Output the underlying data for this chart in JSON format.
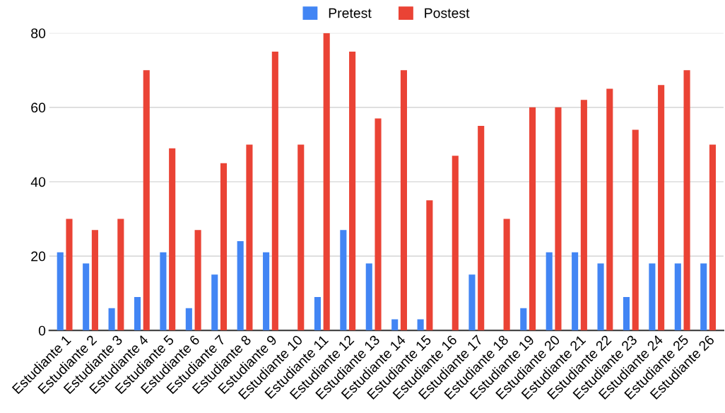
{
  "chart_data": {
    "type": "bar",
    "categories": [
      "Estudiante 1",
      "Estudiante 2",
      "Estudiante 3",
      "Estudiante 4",
      "Estudiante 5",
      "Estudiante 6",
      "Estudiante 7",
      "Estudiante 8",
      "Estudiante 9",
      "Estudiante 10",
      "Estudiante 11",
      "Estudiante 12",
      "Estudiante 13",
      "Estudiante 14",
      "Estudiante 15",
      "Estudiante 16",
      "Estudiante 17",
      "Estudiante 18",
      "Estudiante 19",
      "Estudiante 20",
      "Estudiante 21",
      "Estudiante 22",
      "Estudiante 23",
      "Estudiante 24",
      "Estudiante 25",
      "Estudiante 26"
    ],
    "series": [
      {
        "name": "Pretest",
        "color": "#4285f4",
        "values": [
          21,
          18,
          6,
          9,
          21,
          6,
          15,
          24,
          21,
          0,
          9,
          27,
          18,
          3,
          3,
          0,
          15,
          0,
          6,
          21,
          21,
          18,
          9,
          18,
          18,
          18
        ]
      },
      {
        "name": "Postest",
        "color": "#ea4335",
        "values": [
          30,
          27,
          30,
          70,
          49,
          27,
          45,
          50,
          75,
          50,
          80,
          75,
          57,
          70,
          35,
          47,
          55,
          30,
          60,
          60,
          62,
          65,
          54,
          66,
          70,
          50
        ]
      }
    ],
    "ylim": [
      0,
      80
    ],
    "yticks": [
      0,
      20,
      40,
      60,
      80
    ],
    "grid": "y",
    "legend": "top"
  }
}
